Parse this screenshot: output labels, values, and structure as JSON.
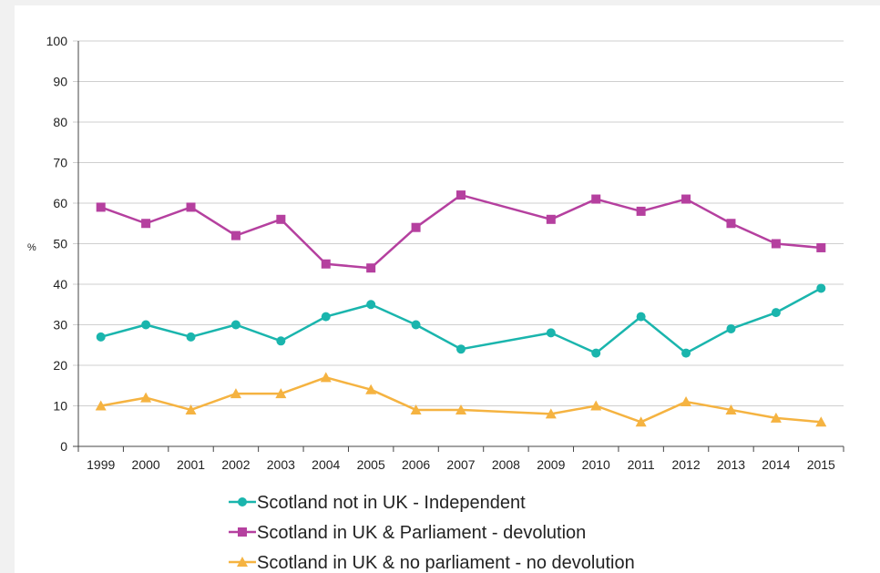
{
  "chart_data": {
    "type": "line",
    "title": "",
    "xlabel": "",
    "ylabel": "%",
    "ylim": [
      0,
      100
    ],
    "yticks": [
      0,
      10,
      20,
      30,
      40,
      50,
      60,
      70,
      80,
      90,
      100
    ],
    "grid": true,
    "legend_position": "bottom",
    "categories": [
      "1999",
      "2000",
      "2001",
      "2002",
      "2003",
      "2004",
      "2005",
      "2006",
      "2007",
      "2008",
      "2009",
      "2010",
      "2011",
      "2012",
      "2013",
      "2014",
      "2015"
    ],
    "series": [
      {
        "name": "Scotland not in UK - Independent",
        "color": "#1ab5ad",
        "marker": "circle",
        "values": [
          27,
          30,
          27,
          30,
          26,
          32,
          35,
          30,
          24,
          null,
          28,
          23,
          32,
          23,
          29,
          33,
          39
        ]
      },
      {
        "name": "Scotland in UK & Parliament - devolution",
        "color": "#b5409f",
        "marker": "square",
        "values": [
          59,
          55,
          59,
          52,
          56,
          45,
          44,
          54,
          62,
          null,
          56,
          61,
          58,
          61,
          55,
          50,
          49
        ]
      },
      {
        "name": "Scotland in UK & no parliament - no devolution",
        "color": "#f5b341",
        "marker": "triangle",
        "values": [
          10,
          12,
          9,
          13,
          13,
          17,
          14,
          9,
          9,
          null,
          8,
          10,
          6,
          11,
          9,
          7,
          6
        ]
      }
    ]
  }
}
